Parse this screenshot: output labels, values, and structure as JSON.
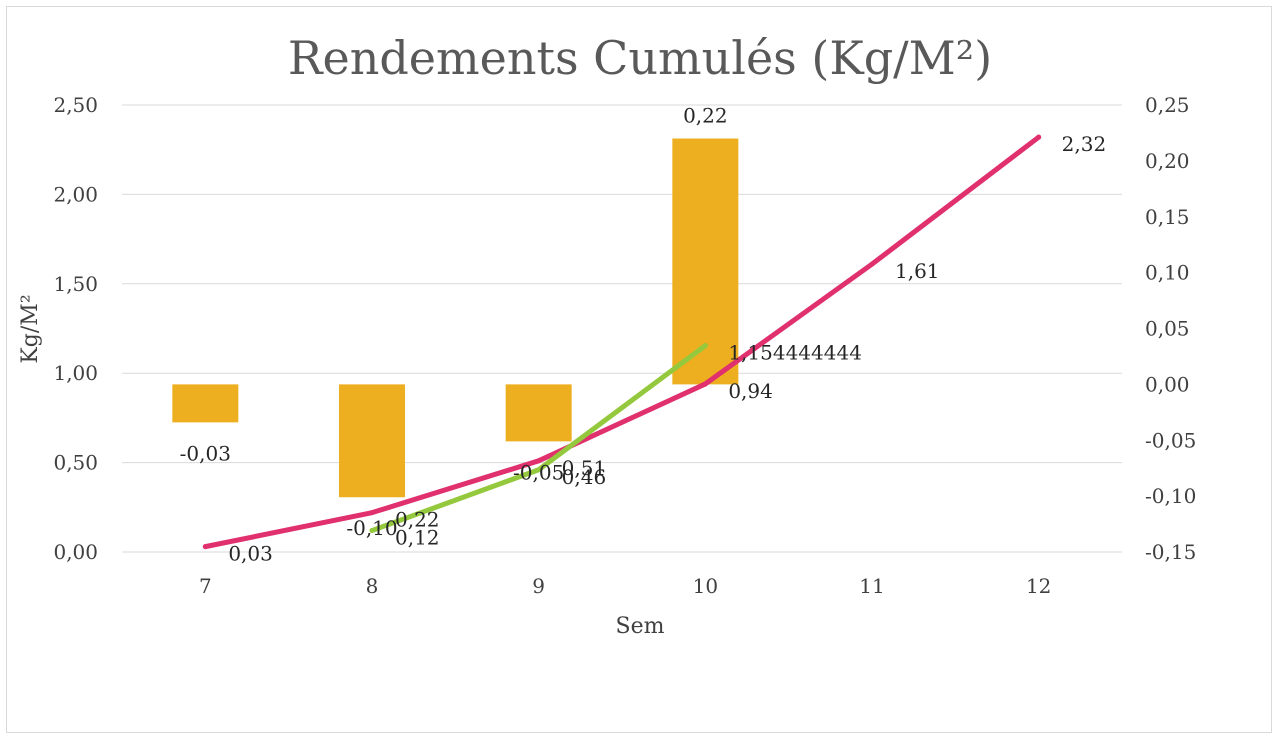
{
  "chart_data": {
    "type": "combo",
    "title": "Rendements Cumulés (Kg/M²)",
    "xlabel": "Sem",
    "ylabel": "Kg/M²",
    "categories": [
      "7",
      "8",
      "9",
      "10",
      "11",
      "12"
    ],
    "ylim_left": [
      0,
      2.5
    ],
    "ylim_right": [
      -0.15,
      0.25
    ],
    "yticks_left": [
      "0,00",
      "0,50",
      "1,00",
      "1,50",
      "2,00",
      "2,50"
    ],
    "yticks_right": [
      "-0,15",
      "-0,10",
      "-0,05",
      "0,00",
      "0,05",
      "0,10",
      "0,15",
      "0,20",
      "0,25"
    ],
    "grid": true,
    "legend": "none",
    "series": [
      {
        "type": "bar",
        "axis": "right",
        "color": "#EDAE1F",
        "values": [
          -0.034,
          -0.101,
          -0.051,
          0.22,
          null,
          null
        ],
        "labels": [
          "-0,03",
          "-0,10",
          "-0,05",
          "0,22",
          "",
          ""
        ]
      },
      {
        "type": "line",
        "axis": "left",
        "color": "#E0306E",
        "values": [
          0.03,
          0.22,
          0.51,
          0.94,
          1.61,
          2.32
        ],
        "labels": [
          "0,03",
          "0,22",
          "0,51",
          "0,94",
          "1,61",
          "2,32"
        ]
      },
      {
        "type": "line",
        "axis": "left",
        "color": "#95C93D",
        "values": [
          null,
          0.12,
          0.46,
          1.154444444,
          null,
          null
        ],
        "labels": [
          "",
          "0,12",
          "0,46",
          "1,154444444",
          "",
          ""
        ]
      }
    ]
  }
}
